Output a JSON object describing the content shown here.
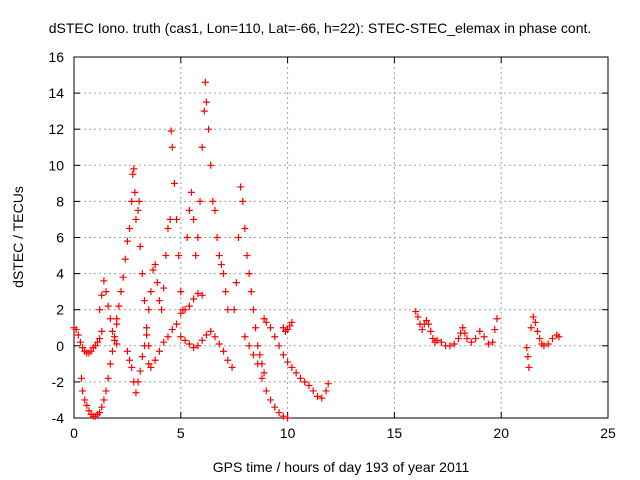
{
  "chart_data": {
    "type": "scatter",
    "title": "dSTEC Iono. truth (cas1, Lon=110, Lat=-66, h=22): STEC-STEC_elemax in phase cont.",
    "xlabel": "GPS time / hours of day 193 of year 2011",
    "ylabel": "dSTEC  / TECUs",
    "xlim": [
      0,
      25
    ],
    "ylim": [
      -4,
      16
    ],
    "xticks": [
      "0",
      "5",
      "10",
      "15",
      "20",
      "25"
    ],
    "yticks": [
      "-4",
      "-2",
      "0",
      "2",
      "4",
      "6",
      "8",
      "10",
      "12",
      "14",
      "16"
    ],
    "grid": true,
    "marker": "plus",
    "marker_color": "#ff0000",
    "series": [
      {
        "points": [
          [
            0.0,
            1.0
          ],
          [
            0.1,
            0.9
          ],
          [
            0.2,
            0.6
          ],
          [
            0.3,
            0.2
          ],
          [
            0.4,
            -0.1
          ],
          [
            0.5,
            -0.3
          ],
          [
            0.6,
            -0.4
          ],
          [
            0.7,
            -0.4
          ],
          [
            0.8,
            -0.3
          ],
          [
            0.9,
            -0.1
          ],
          [
            1.0,
            0.0
          ],
          [
            1.1,
            0.2
          ],
          [
            1.2,
            0.4
          ],
          [
            1.3,
            0.8
          ],
          [
            0.35,
            -1.8
          ],
          [
            0.4,
            -2.5
          ],
          [
            0.5,
            -3.0
          ],
          [
            0.6,
            -3.3
          ],
          [
            0.7,
            -3.6
          ],
          [
            0.8,
            -3.8
          ],
          [
            0.9,
            -3.9
          ],
          [
            1.0,
            -3.9
          ],
          [
            1.1,
            -3.8
          ],
          [
            1.2,
            -3.7
          ],
          [
            1.3,
            -3.4
          ],
          [
            1.4,
            -3.0
          ],
          [
            1.5,
            -2.5
          ],
          [
            1.6,
            -1.8
          ],
          [
            1.7,
            -1.0
          ],
          [
            1.8,
            -0.3
          ],
          [
            1.9,
            0.5
          ],
          [
            2.0,
            1.2
          ],
          [
            1.2,
            2.0
          ],
          [
            1.3,
            2.8
          ],
          [
            1.4,
            3.6
          ],
          [
            1.5,
            3.0
          ],
          [
            1.6,
            2.2
          ],
          [
            1.7,
            1.5
          ],
          [
            1.8,
            0.8
          ],
          [
            1.9,
            0.3
          ],
          [
            2.0,
            0.1
          ],
          [
            2.0,
            1.5
          ],
          [
            2.1,
            2.2
          ],
          [
            2.2,
            3.0
          ],
          [
            2.3,
            3.8
          ],
          [
            2.4,
            4.8
          ],
          [
            2.5,
            5.8
          ],
          [
            2.6,
            6.5
          ],
          [
            2.7,
            8.0
          ],
          [
            2.75,
            9.5
          ],
          [
            2.8,
            9.8
          ],
          [
            2.85,
            8.5
          ],
          [
            2.9,
            7.0
          ],
          [
            3.0,
            7.5
          ],
          [
            3.05,
            8.0
          ],
          [
            3.1,
            5.5
          ],
          [
            3.2,
            4.0
          ],
          [
            3.3,
            2.5
          ],
          [
            3.4,
            1.0
          ],
          [
            3.5,
            0.0
          ],
          [
            2.5,
            -0.3
          ],
          [
            2.6,
            -0.8
          ],
          [
            2.7,
            -1.2
          ],
          [
            2.8,
            -2.0
          ],
          [
            2.9,
            -2.6
          ],
          [
            3.0,
            -2.0
          ],
          [
            3.1,
            -1.4
          ],
          [
            3.2,
            -0.6
          ],
          [
            3.3,
            0.0
          ],
          [
            3.4,
            0.6
          ],
          [
            3.5,
            2.0
          ],
          [
            3.6,
            3.0
          ],
          [
            3.7,
            4.2
          ],
          [
            3.8,
            4.5
          ],
          [
            3.9,
            3.5
          ],
          [
            4.0,
            2.5
          ],
          [
            4.1,
            2.0
          ],
          [
            4.2,
            3.2
          ],
          [
            4.3,
            5.0
          ],
          [
            4.4,
            6.5
          ],
          [
            4.5,
            7.0
          ],
          [
            4.55,
            11.9
          ],
          [
            4.6,
            11.0
          ],
          [
            4.7,
            9.0
          ],
          [
            4.8,
            7.0
          ],
          [
            4.9,
            5.0
          ],
          [
            5.0,
            3.0
          ],
          [
            5.1,
            2.0
          ],
          [
            3.5,
            -1.0
          ],
          [
            3.6,
            -1.2
          ],
          [
            3.8,
            -0.8
          ],
          [
            4.0,
            -0.3
          ],
          [
            4.2,
            0.2
          ],
          [
            4.4,
            0.5
          ],
          [
            4.6,
            0.9
          ],
          [
            4.8,
            1.2
          ],
          [
            5.0,
            1.8
          ],
          [
            5.2,
            2.0
          ],
          [
            5.4,
            2.2
          ],
          [
            5.6,
            2.6
          ],
          [
            5.8,
            2.9
          ],
          [
            6.0,
            2.8
          ],
          [
            5.0,
            0.5
          ],
          [
            5.2,
            0.3
          ],
          [
            5.4,
            0.1
          ],
          [
            5.6,
            -0.1
          ],
          [
            5.8,
            0.0
          ],
          [
            6.0,
            0.3
          ],
          [
            6.2,
            0.6
          ],
          [
            6.4,
            0.8
          ],
          [
            6.6,
            0.5
          ],
          [
            6.8,
            0.1
          ],
          [
            7.0,
            -0.3
          ],
          [
            7.2,
            -0.8
          ],
          [
            7.4,
            -1.2
          ],
          [
            5.3,
            6.0
          ],
          [
            5.4,
            7.5
          ],
          [
            5.5,
            8.5
          ],
          [
            5.6,
            7.0
          ],
          [
            5.7,
            5.0
          ],
          [
            5.8,
            6.0
          ],
          [
            5.9,
            8.0
          ],
          [
            6.0,
            11.0
          ],
          [
            6.1,
            13.0
          ],
          [
            6.15,
            14.6
          ],
          [
            6.2,
            13.5
          ],
          [
            6.3,
            12.0
          ],
          [
            6.4,
            10.0
          ],
          [
            6.5,
            8.0
          ],
          [
            6.6,
            7.5
          ],
          [
            6.7,
            6.0
          ],
          [
            6.8,
            5.0
          ],
          [
            6.9,
            4.5
          ],
          [
            7.0,
            4.0
          ],
          [
            7.1,
            3.0
          ],
          [
            7.2,
            2.0
          ],
          [
            7.5,
            2.0
          ],
          [
            7.6,
            3.5
          ],
          [
            7.7,
            6.0
          ],
          [
            7.8,
            8.8
          ],
          [
            7.9,
            8.0
          ],
          [
            8.0,
            6.5
          ],
          [
            8.1,
            5.0
          ],
          [
            8.2,
            4.0
          ],
          [
            8.3,
            3.0
          ],
          [
            8.4,
            2.0
          ],
          [
            8.5,
            1.0
          ],
          [
            8.6,
            0.0
          ],
          [
            8.7,
            -0.5
          ],
          [
            8.8,
            -1.0
          ],
          [
            8.9,
            -1.5
          ],
          [
            8.0,
            0.5
          ],
          [
            8.2,
            0.0
          ],
          [
            8.4,
            -0.5
          ],
          [
            8.6,
            -1.0
          ],
          [
            8.8,
            -1.8
          ],
          [
            9.0,
            -2.5
          ],
          [
            9.2,
            -3.0
          ],
          [
            9.4,
            -3.4
          ],
          [
            9.6,
            -3.7
          ],
          [
            9.8,
            -3.9
          ],
          [
            10.0,
            -4.0
          ],
          [
            8.9,
            1.5
          ],
          [
            9.0,
            1.3
          ],
          [
            9.2,
            1.0
          ],
          [
            9.4,
            0.5
          ],
          [
            9.6,
            0.0
          ],
          [
            9.8,
            -0.5
          ],
          [
            10.0,
            -0.9
          ],
          [
            10.2,
            -1.2
          ],
          [
            10.4,
            -1.5
          ],
          [
            10.6,
            -1.8
          ],
          [
            10.8,
            -2.0
          ],
          [
            11.0,
            -2.2
          ],
          [
            11.2,
            -2.5
          ],
          [
            11.4,
            -2.8
          ],
          [
            11.6,
            -2.9
          ],
          [
            11.8,
            -2.5
          ],
          [
            11.9,
            -2.1
          ],
          [
            9.8,
            1.0
          ],
          [
            9.9,
            0.8
          ],
          [
            10.0,
            0.9
          ],
          [
            10.1,
            1.1
          ],
          [
            10.2,
            1.3
          ],
          [
            16.0,
            1.9
          ],
          [
            16.1,
            1.6
          ],
          [
            16.2,
            1.2
          ],
          [
            16.3,
            0.9
          ],
          [
            16.4,
            1.2
          ],
          [
            16.5,
            1.4
          ],
          [
            16.6,
            1.2
          ],
          [
            16.7,
            0.8
          ],
          [
            16.8,
            0.4
          ],
          [
            16.9,
            0.2
          ],
          [
            17.0,
            0.3
          ],
          [
            17.2,
            0.2
          ],
          [
            17.4,
            0.0
          ],
          [
            17.6,
            0.0
          ],
          [
            17.8,
            0.1
          ],
          [
            18.0,
            0.4
          ],
          [
            18.1,
            0.7
          ],
          [
            18.2,
            1.0
          ],
          [
            18.3,
            0.7
          ],
          [
            18.4,
            0.4
          ],
          [
            18.6,
            0.2
          ],
          [
            18.8,
            0.4
          ],
          [
            19.0,
            0.8
          ],
          [
            19.2,
            0.5
          ],
          [
            19.4,
            0.1
          ],
          [
            19.6,
            0.2
          ],
          [
            19.7,
            0.9
          ],
          [
            19.8,
            1.5
          ],
          [
            21.2,
            -0.1
          ],
          [
            21.25,
            -0.6
          ],
          [
            21.3,
            -1.2
          ],
          [
            21.4,
            1.0
          ],
          [
            21.5,
            1.6
          ],
          [
            21.6,
            1.3
          ],
          [
            21.7,
            0.8
          ],
          [
            21.8,
            0.4
          ],
          [
            21.9,
            0.1
          ],
          [
            22.0,
            0.0
          ],
          [
            22.2,
            0.1
          ],
          [
            22.4,
            0.4
          ],
          [
            22.6,
            0.6
          ],
          [
            22.7,
            0.5
          ]
        ]
      }
    ]
  }
}
